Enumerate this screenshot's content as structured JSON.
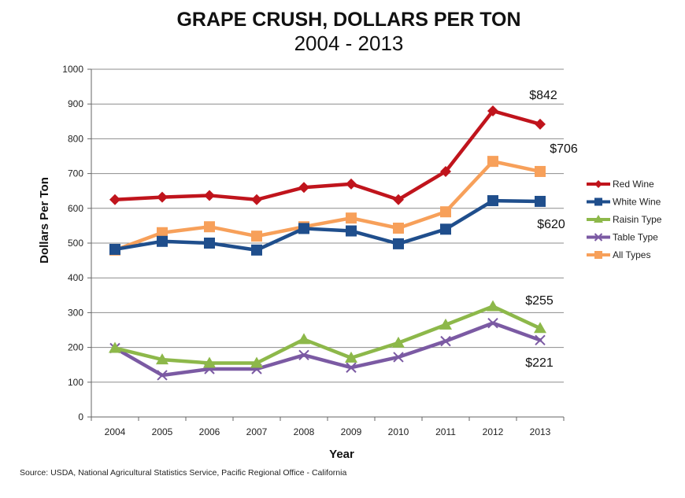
{
  "chart_data": {
    "type": "line",
    "title": "GRAPE CRUSH, DOLLARS PER TON",
    "subtitle": "2004 - 2013",
    "xlabel": "Year",
    "ylabel": "Dollars Per Ton",
    "ylim": [
      0,
      1000
    ],
    "yticks": [
      0,
      100,
      200,
      300,
      400,
      500,
      600,
      700,
      800,
      900,
      1000
    ],
    "grid": true,
    "legend_position": "right",
    "categories": [
      "2004",
      "2005",
      "2006",
      "2007",
      "2008",
      "2009",
      "2010",
      "2011",
      "2012",
      "2013"
    ],
    "series": [
      {
        "name": "Red Wine",
        "color": "#C0141C",
        "marker": "diamond",
        "values": [
          625,
          632,
          637,
          625,
          660,
          670,
          625,
          706,
          880,
          842
        ]
      },
      {
        "name": "White Wine",
        "color": "#1F4E8C",
        "marker": "square",
        "values": [
          482,
          505,
          500,
          480,
          542,
          535,
          498,
          540,
          622,
          620
        ]
      },
      {
        "name": "Raisin Type",
        "color": "#8DB84A",
        "marker": "triangle",
        "values": [
          198,
          165,
          155,
          155,
          223,
          170,
          213,
          265,
          318,
          255
        ]
      },
      {
        "name": "Table Type",
        "color": "#7B5AA3",
        "marker": "x",
        "values": [
          198,
          120,
          138,
          138,
          178,
          142,
          172,
          218,
          270,
          221
        ]
      },
      {
        "name": "All Types",
        "color": "#F7A05A",
        "marker": "square",
        "values": [
          480,
          530,
          547,
          520,
          547,
          572,
          543,
          590,
          735,
          706
        ]
      }
    ],
    "annotations": [
      {
        "text": "$842",
        "near_series": "Red Wine",
        "year": "2013"
      },
      {
        "text": "$706",
        "near_series": "All Types",
        "year": "2013"
      },
      {
        "text": "$620",
        "near_series": "White Wine",
        "year": "2013"
      },
      {
        "text": "$255",
        "near_series": "Raisin Type",
        "year": "2013"
      },
      {
        "text": "$221",
        "near_series": "Table Type",
        "year": "2013"
      }
    ]
  },
  "source": "Source: USDA, National Agricultural Statistics Service, Pacific Regional Office - California"
}
